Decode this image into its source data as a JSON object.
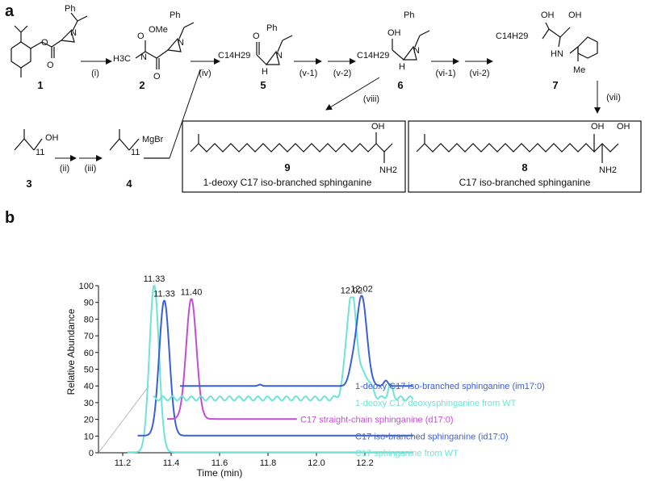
{
  "panels": {
    "a": "a",
    "b": "b"
  },
  "scheme": {
    "compounds": [
      "1",
      "2",
      "3",
      "4",
      "5",
      "6",
      "7",
      "8",
      "9"
    ],
    "steps": {
      "i": "(i)",
      "ii": "(ii)",
      "iii": "(iii)",
      "iv": "(iv)",
      "v1": "(v-1)",
      "v2": "(v-2)",
      "vi1": "(vi-1)",
      "vi2": "(vi-2)",
      "vii": "(vii)",
      "viii": "(viii)"
    },
    "atoms": {
      "ph": "Ph",
      "n": "N",
      "o": "O",
      "ome": "OMe",
      "h3c": "H3C",
      "oh": "OH",
      "h": "H",
      "hn": "HN",
      "me": "Me",
      "nh2": "NH2",
      "c14h29": "C14H29",
      "mgbr": "MgBr",
      "n11": "11"
    },
    "products": {
      "p9": "1-deoxy C17 iso-branched sphinganine",
      "p8": "C17 iso-branched sphinganine"
    }
  },
  "chart_data": {
    "type": "line",
    "xlabel": "Time (min)",
    "ylabel": "Relative Abundance",
    "x_ticks": [
      "11.2",
      "11.4",
      "11.6",
      "11.8",
      "12.0",
      "12.2"
    ],
    "y_ticks": [
      "0",
      "10",
      "20",
      "30",
      "40",
      "50",
      "60",
      "70",
      "80",
      "90",
      "100"
    ],
    "xlim": [
      11.1,
      12.4
    ],
    "ylim": [
      0,
      100
    ],
    "peak_labels": [
      {
        "text": "11.33",
        "series": "C17 sphinganine from WT"
      },
      {
        "text": "11.33",
        "series": "C17 iso-branched sphinganine (id17:0)"
      },
      {
        "text": "11.40",
        "series": "C17 straight-chain sphinganine (d17:0)"
      },
      {
        "text": "12.02",
        "series": "1-deoxy C17 deoxysphinganine from WT"
      },
      {
        "text": "12.02",
        "series": "1-deoxy C17 iso-branched sphinganine (im17:0)"
      }
    ],
    "series": [
      {
        "name": "C17 sphinganine from WT",
        "color": "#6fe3d6",
        "baseline": 0,
        "peak_x": 11.33,
        "peak_y": 100
      },
      {
        "name": "C17 iso-branched sphinganine (id17:0)",
        "color": "#3d5fd6",
        "baseline": 10,
        "peak_x": 11.33,
        "peak_y": 100
      },
      {
        "name": "C17 straight-chain sphinganine (d17:0)",
        "color": "#c04fd0",
        "baseline": 20,
        "peak_x": 11.4,
        "peak_y": 100
      },
      {
        "name": "1-deoxy C17 deoxysphinganine from WT",
        "color": "#6fe3d6",
        "baseline": 30,
        "peak_x": 12.02,
        "peak_y": 100
      },
      {
        "name": "1-deoxy C17 iso-branched sphinganine (im17:0)",
        "color": "#3d5fd6",
        "baseline": 40,
        "peak_x": 12.02,
        "peak_y": 100
      }
    ]
  }
}
